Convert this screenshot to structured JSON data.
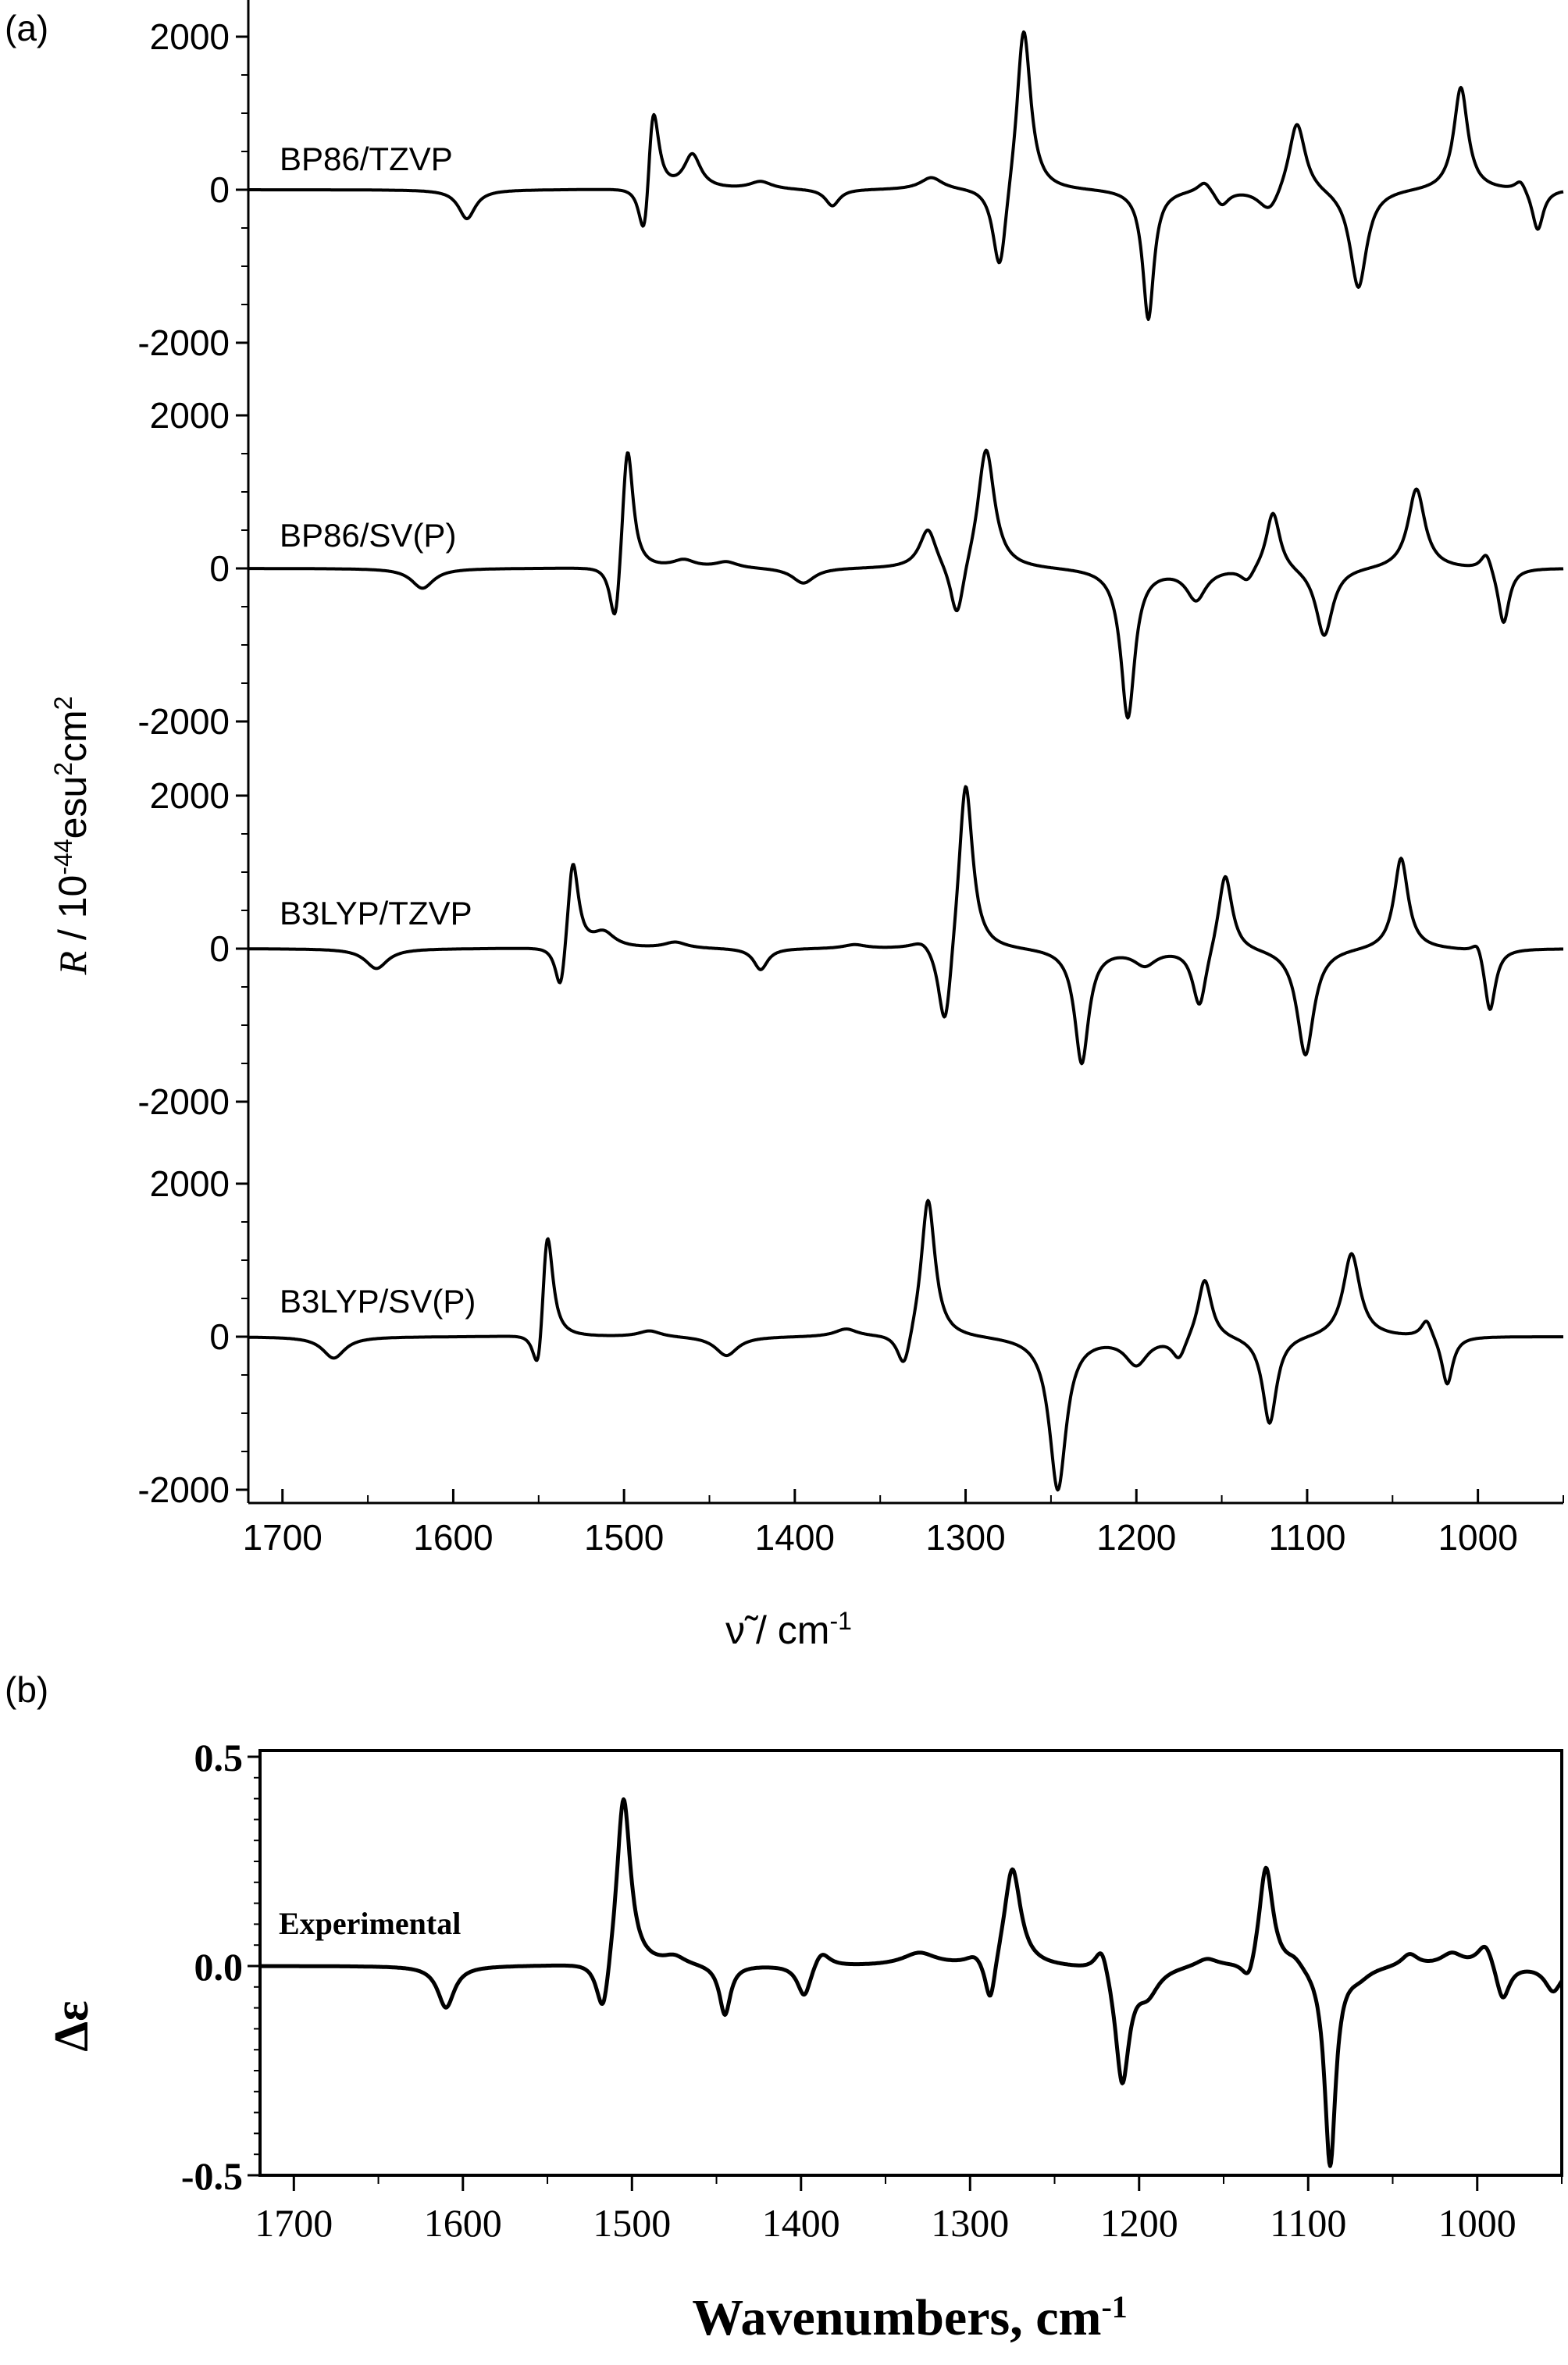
{
  "panels": {
    "a": {
      "label": "(a)"
    },
    "b": {
      "label": "(b)"
    }
  },
  "chart_data": [
    {
      "type": "line",
      "panel": "(a)",
      "ylabel_prefix": "R",
      "ylabel_main": " / 10",
      "ylabel_exp1": "-44",
      "ylabel_mid": "esu",
      "ylabel_exp2": "2",
      "ylabel_tail": "cm",
      "ylabel_exp3": "2",
      "xlabel_main": "ν̃ / cm",
      "xlabel_exp": "-1",
      "xlim": [
        1720,
        950
      ],
      "ylim_per_series": [
        -2000,
        2000
      ],
      "x_ticks": [
        1700,
        1600,
        1500,
        1400,
        1300,
        1200,
        1100,
        1000
      ],
      "y_ticks": [
        2000,
        0,
        -2000
      ],
      "y_tick_labels": [
        "2000",
        "0",
        "-2000"
      ],
      "series": [
        {
          "name": "BP86/TZVP",
          "peaks": [
            [
              1592,
              -380,
              6
            ],
            [
              1488,
              -950,
              4
            ],
            [
              1483,
              1300,
              4
            ],
            [
              1460,
              450,
              6
            ],
            [
              1420,
              100,
              8
            ],
            [
              1378,
              -220,
              5
            ],
            [
              1320,
              160,
              8
            ],
            [
              1280,
              -1200,
              5
            ],
            [
              1266,
              2200,
              5
            ],
            [
              1193,
              -1700,
              4
            ],
            [
              1160,
              150,
              5
            ],
            [
              1150,
              -200,
              5
            ],
            [
              1122,
              -320,
              8
            ],
            [
              1106,
              950,
              6
            ],
            [
              1070,
              -1300,
              6
            ],
            [
              1010,
              1350,
              5
            ],
            [
              975,
              150,
              4
            ],
            [
              965,
              -550,
              4
            ]
          ]
        },
        {
          "name": "BP86/SV(P)",
          "peaks": [
            [
              1618,
              -260,
              8
            ],
            [
              1505,
              -1000,
              4
            ],
            [
              1498,
              1750,
              4
            ],
            [
              1465,
              100,
              8
            ],
            [
              1440,
              80,
              8
            ],
            [
              1395,
              -200,
              8
            ],
            [
              1322,
              520,
              6
            ],
            [
              1305,
              -780,
              5
            ],
            [
              1288,
              1600,
              6
            ],
            [
              1205,
              -1950,
              5
            ],
            [
              1165,
              -400,
              7
            ],
            [
              1135,
              -180,
              5
            ],
            [
              1120,
              780,
              5
            ],
            [
              1090,
              -900,
              6
            ],
            [
              1036,
              1050,
              6
            ],
            [
              995,
              250,
              4
            ],
            [
              985,
              -750,
              4
            ]
          ]
        },
        {
          "name": "B3LYP/TZVP",
          "peaks": [
            [
              1645,
              -260,
              8
            ],
            [
              1537,
              -750,
              4
            ],
            [
              1530,
              1250,
              4
            ],
            [
              1512,
              200,
              8
            ],
            [
              1470,
              80,
              8
            ],
            [
              1420,
              -280,
              5
            ],
            [
              1365,
              50,
              8
            ],
            [
              1325,
              120,
              8
            ],
            [
              1312,
              -1250,
              5
            ],
            [
              1300,
              2300,
              5
            ],
            [
              1232,
              -1500,
              5
            ],
            [
              1195,
              -200,
              8
            ],
            [
              1163,
              -800,
              5
            ],
            [
              1148,
              1050,
              5
            ],
            [
              1101,
              -1400,
              6
            ],
            [
              1045,
              1200,
              5
            ],
            [
              1000,
              200,
              4
            ],
            [
              993,
              -850,
              4
            ]
          ]
        },
        {
          "name": "B3LYP/SV(P)",
          "peaks": [
            [
              1670,
              -280,
              8
            ],
            [
              1550,
              -850,
              4
            ],
            [
              1545,
              1600,
              4
            ],
            [
              1485,
              80,
              8
            ],
            [
              1440,
              -250,
              8
            ],
            [
              1370,
              100,
              8
            ],
            [
              1336,
              -520,
              5
            ],
            [
              1322,
              1850,
              5
            ],
            [
              1246,
              -2000,
              6
            ],
            [
              1200,
              -350,
              8
            ],
            [
              1175,
              -300,
              5
            ],
            [
              1160,
              800,
              5
            ],
            [
              1122,
              -1150,
              5
            ],
            [
              1074,
              1100,
              6
            ],
            [
              1030,
              250,
              4
            ],
            [
              1018,
              -650,
              4
            ]
          ]
        }
      ]
    },
    {
      "type": "line",
      "panel": "(b)",
      "ylabel": "Δε",
      "xlabel": "Wavenumbers, cm",
      "xlabel_exp": "-1",
      "xlim": [
        1720,
        950
      ],
      "ylim": [
        -0.5,
        0.5
      ],
      "x_ticks": [
        1700,
        1600,
        1500,
        1400,
        1300,
        1200,
        1100,
        1000
      ],
      "y_ticks": [
        0.5,
        0.0,
        -0.5
      ],
      "y_tick_labels": [
        "0.5",
        "0.0",
        "-0.5"
      ],
      "series": [
        {
          "name": "Experimental",
          "peaks": [
            [
              1610,
              -0.1,
              6
            ],
            [
              1517,
              -0.15,
              5
            ],
            [
              1505,
              0.42,
              5
            ],
            [
              1475,
              0.02,
              8
            ],
            [
              1445,
              -0.12,
              4
            ],
            [
              1398,
              -0.08,
              5
            ],
            [
              1388,
              0.04,
              6
            ],
            [
              1330,
              0.03,
              12
            ],
            [
              1297,
              0.02,
              6
            ],
            [
              1288,
              -0.12,
              4
            ],
            [
              1275,
              0.24,
              6
            ],
            [
              1222,
              0.07,
              5
            ],
            [
              1210,
              -0.28,
              5
            ],
            [
              1195,
              -0.06,
              8
            ],
            [
              1160,
              0.02,
              8
            ],
            [
              1135,
              -0.06,
              5
            ],
            [
              1125,
              0.25,
              5
            ],
            [
              1108,
              0.02,
              6
            ],
            [
              1087,
              -0.48,
              4
            ],
            [
              1070,
              -0.02,
              8
            ],
            [
              1040,
              0.03,
              6
            ],
            [
              1015,
              0.03,
              8
            ],
            [
              995,
              0.06,
              6
            ],
            [
              985,
              -0.09,
              5
            ],
            [
              955,
              -0.06,
              6
            ]
          ]
        }
      ]
    }
  ]
}
